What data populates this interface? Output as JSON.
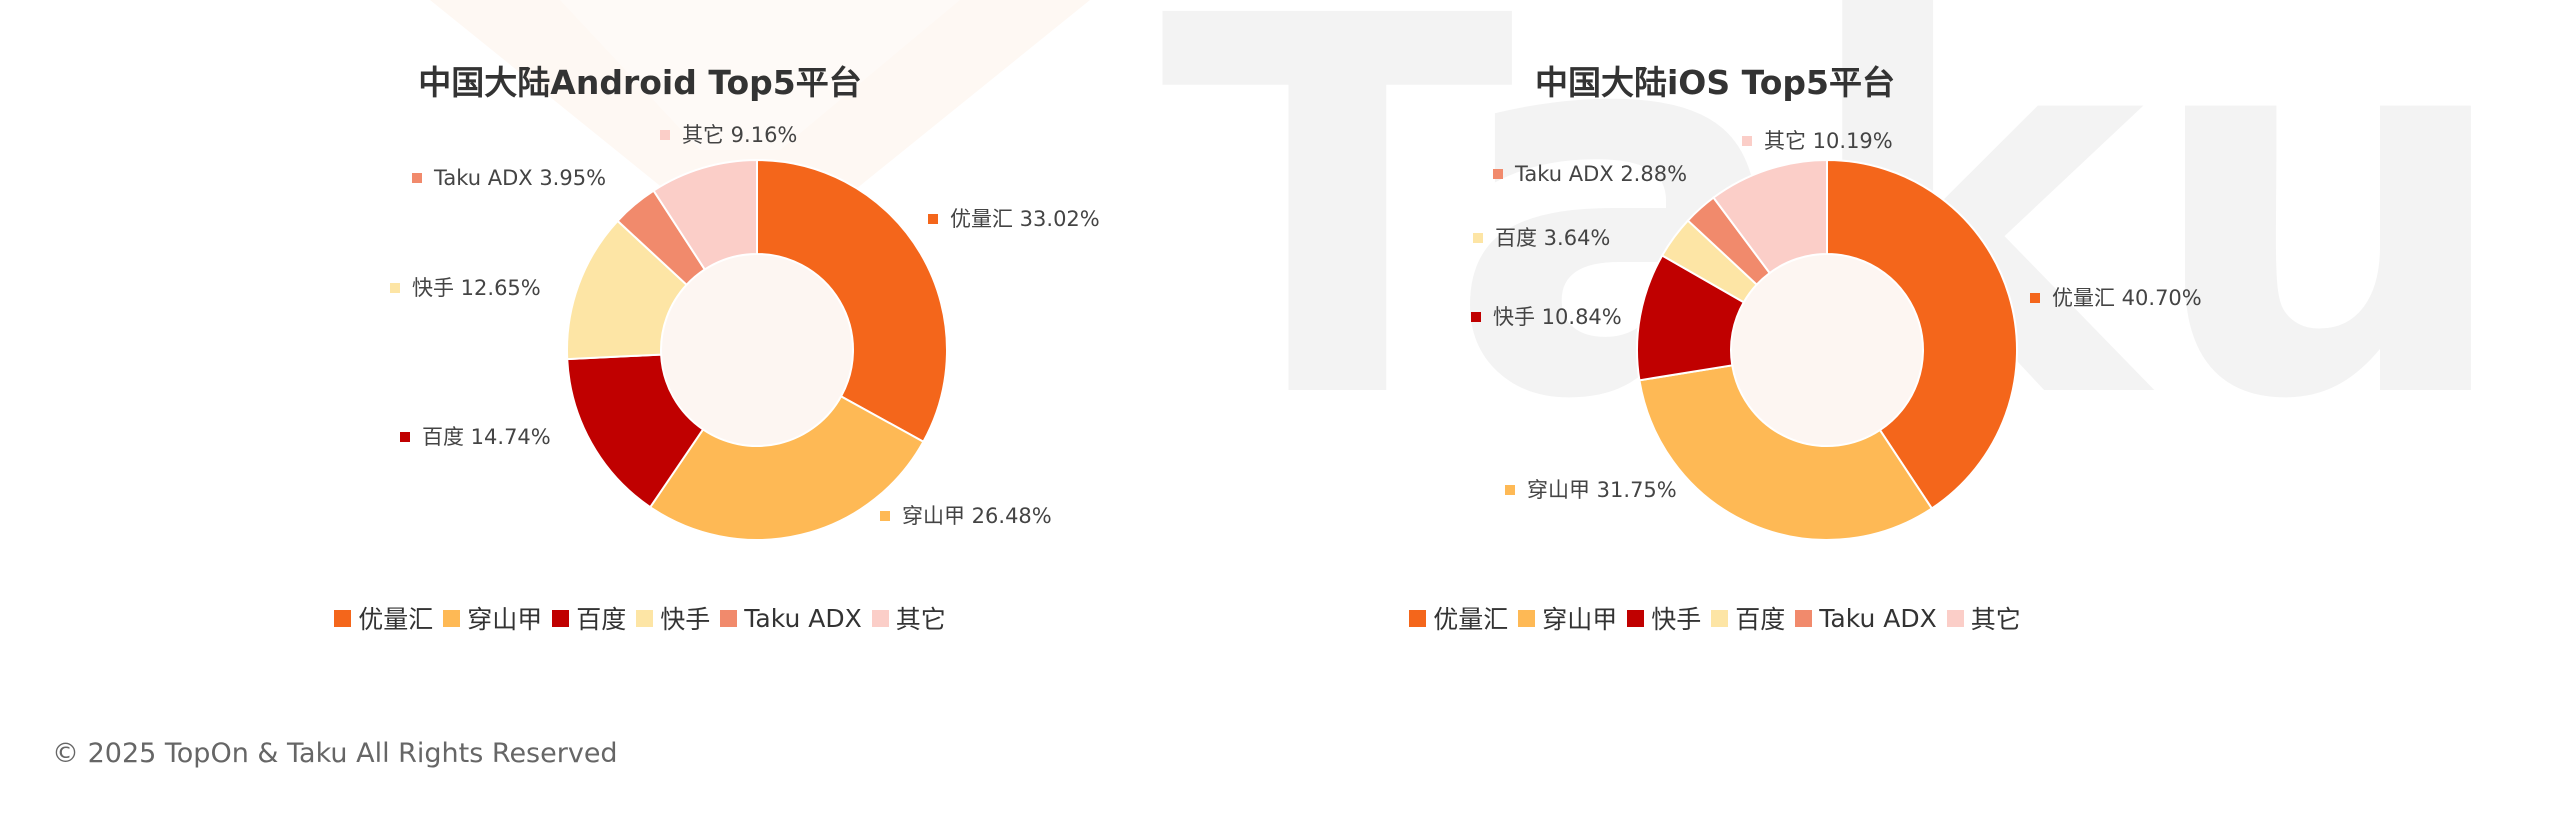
{
  "colors": {
    "youlianghui": "#F4661B",
    "chuanshanjia": "#FEB955",
    "baidu": "#C00000",
    "kuaishou": "#FDE5A5",
    "taku_adx": "#F18A6C",
    "other": "#FBCEC8",
    "center": "#FDF6F2",
    "watermark": "#F3F3F3",
    "watermark_warm": "#FEF8F3"
  },
  "watermark": {
    "text": "Taku"
  },
  "chart_data": [
    {
      "type": "pie",
      "title": "中国大陆Android Top5平台",
      "categories": [
        "优量汇",
        "穿山甲",
        "百度",
        "快手",
        "Taku ADX",
        "其它"
      ],
      "values": [
        33.02,
        26.48,
        14.74,
        12.65,
        3.95,
        9.16
      ],
      "labels": [
        "优量汇 33.02%",
        "穿山甲 26.48%",
        "百度 14.74%",
        "快手 12.65%",
        "Taku ADX 3.95%",
        "其它 9.16%"
      ],
      "colors": [
        "#F4661B",
        "#FEB955",
        "#C00000",
        "#FDE5A5",
        "#F18A6C",
        "#FBCEC8"
      ],
      "legend": [
        "优量汇",
        "穿山甲",
        "百度",
        "快手",
        "Taku ADX",
        "其它"
      ],
      "legend_position": "bottom",
      "donut": true
    },
    {
      "type": "pie",
      "title": "中国大陆iOS Top5平台",
      "categories": [
        "优量汇",
        "穿山甲",
        "快手",
        "百度",
        "Taku ADX",
        "其它"
      ],
      "values": [
        40.7,
        31.75,
        10.84,
        3.64,
        2.88,
        10.19
      ],
      "labels": [
        "优量汇 40.70%",
        "穿山甲 31.75%",
        "快手 10.84%",
        "百度 3.64%",
        "Taku ADX 2.88%",
        "其它 10.19%"
      ],
      "colors": [
        "#F4661B",
        "#FEB955",
        "#C00000",
        "#FDE5A5",
        "#F18A6C",
        "#FBCEC8"
      ],
      "legend": [
        "优量汇",
        "穿山甲",
        "快手",
        "百度",
        "Taku ADX",
        "其它"
      ],
      "legend_position": "bottom",
      "donut": true
    }
  ],
  "footer": {
    "copyright": "© 2025 TopOn & Taku All Rights Reserved"
  }
}
